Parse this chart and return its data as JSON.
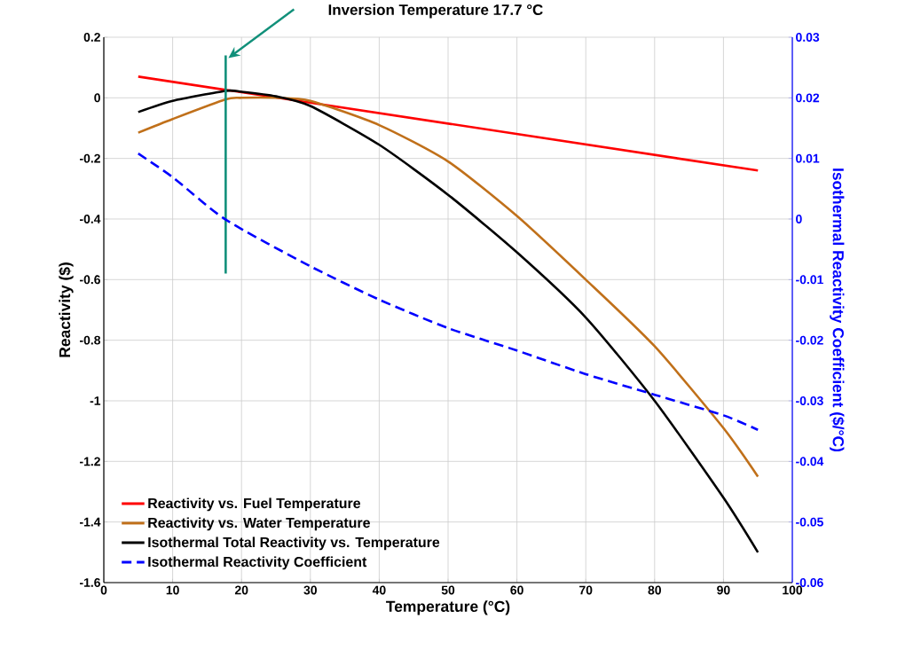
{
  "chart_data": {
    "type": "line",
    "xlabel": "Temperature (°C)",
    "ylabel": "Reactivity ($)",
    "y2label": "Isothermal Reactivity Coefficient ($/°C)",
    "xlim": [
      0,
      100
    ],
    "xticks": [
      0,
      10,
      20,
      30,
      40,
      50,
      60,
      70,
      80,
      90,
      100
    ],
    "ylim": [
      -1.6,
      0.2
    ],
    "yticks": [
      -1.6,
      -1.4,
      -1.2,
      -1,
      -0.8,
      -0.6,
      -0.4,
      -0.2,
      0,
      0.2
    ],
    "y2lim": [
      -0.06,
      0.03
    ],
    "y2ticks": [
      -0.06,
      -0.05,
      -0.04,
      -0.03,
      -0.02,
      -0.01,
      0,
      0.01,
      0.02,
      0.03
    ],
    "grid": true,
    "legend": "bottom left",
    "annotations": [
      "Inversion Temperature 17.7 °C"
    ],
    "series": [
      {
        "name": "Reactivity vs. Fuel Temperature",
        "color": "#ff0000",
        "x": [
          5,
          95
        ],
        "values": [
          0.07,
          -0.24
        ]
      },
      {
        "name": "Reactivity vs. Water Temperature",
        "color": "#c0701a",
        "x": [
          5,
          10,
          17.7,
          20,
          25,
          30,
          40,
          50,
          60,
          70,
          80,
          90,
          95
        ],
        "values": [
          -0.115,
          -0.07,
          -0.005,
          0,
          0,
          -0.01,
          -0.09,
          -0.21,
          -0.39,
          -0.6,
          -0.82,
          -1.09,
          -1.25
        ]
      },
      {
        "name": "Isothermal Total Reactivity vs. Temperature",
        "color": "#000000",
        "x": [
          5,
          10,
          17.7,
          20,
          25,
          30,
          40,
          50,
          60,
          70,
          80,
          90,
          95
        ],
        "values": [
          -0.047,
          -0.01,
          0.023,
          0.02,
          0.005,
          -0.027,
          -0.155,
          -0.32,
          -0.51,
          -0.725,
          -1.0,
          -1.32,
          -1.5
        ]
      },
      {
        "name": "Isothermal Reactivity Coefficient",
        "color": "#0000ff",
        "line_style": "dashed",
        "axis": "y2",
        "x": [
          5,
          10,
          17.7,
          30,
          40,
          50,
          60,
          70,
          80,
          90,
          95
        ],
        "values": [
          0.0108,
          0.0069,
          -0.0001,
          -0.0078,
          -0.0133,
          -0.018,
          -0.0217,
          -0.0256,
          -0.029,
          -0.0324,
          -0.0348
        ]
      },
      {
        "color": "#11907a",
        "x": [
          17.7,
          17.7
        ],
        "values": [
          0.14,
          -0.58
        ]
      }
    ]
  }
}
